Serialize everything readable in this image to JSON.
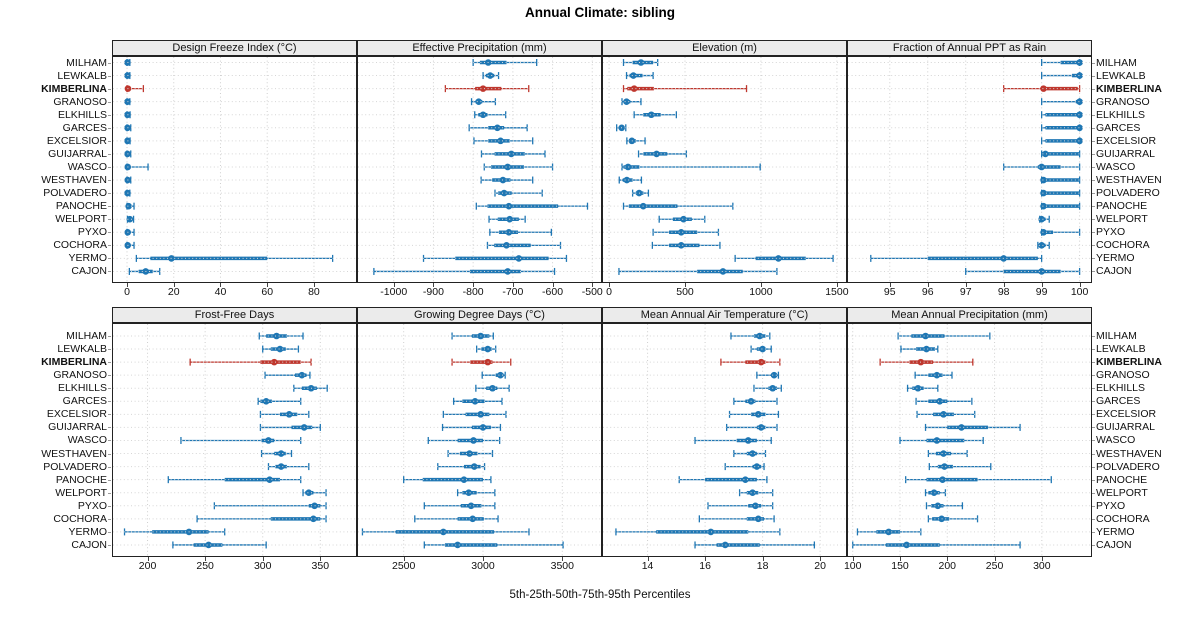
{
  "title": "Annual Climate: sibling",
  "caption": "5th-25th-50th-75th-95th Percentiles",
  "colors": {
    "series_blue": "#1f77b4",
    "highlight_red": "#bf372e",
    "grid": "#cfcfcf",
    "strip_bg": "#ebebeb",
    "panel_border": "#222222"
  },
  "highlight_site": "KIMBERLINA",
  "sites": [
    "MILHAM",
    "LEWKALB",
    "KIMBERLINA",
    "GRANOSO",
    "ELKHILLS",
    "GARCES",
    "EXCELSIOR",
    "GUIJARRAL",
    "WASCO",
    "WESTHAVEN",
    "POLVADERO",
    "PANOCHE",
    "WELPORT",
    "PYXO",
    "COCHORA",
    "YERMO",
    "CAJON"
  ],
  "chart_data": {
    "type": "dotplot-percentile-intervals",
    "percentiles": [
      5,
      25,
      50,
      75,
      95
    ],
    "grid": "2 rows x 4 columns of panels, shared site rows, dotted gridlines",
    "legend_note": "thin line = 5th-95th, thick line = 25th-75th, dot = median; KIMBERLINA highlighted red",
    "panels": [
      {
        "id": "design-freeze-index",
        "label": "Design Freeze Index (°C)",
        "xlim": [
          -6,
          98
        ],
        "ticks": [
          0,
          20,
          40,
          60,
          80
        ],
        "values": [
          [
            0,
            0,
            0.2,
            0.5,
            1.2
          ],
          [
            0,
            0,
            0.2,
            0.5,
            1.2
          ],
          [
            0,
            0.1,
            0.4,
            1,
            7
          ],
          [
            0,
            0,
            0.2,
            0.5,
            1.2
          ],
          [
            0,
            0,
            0.2,
            0.6,
            1.3
          ],
          [
            0,
            0,
            0.2,
            0.6,
            1.6
          ],
          [
            0,
            0,
            0.2,
            0.6,
            1.3
          ],
          [
            0,
            0,
            0.2,
            0.6,
            1.6
          ],
          [
            0,
            0.1,
            0.3,
            0.7,
            9
          ],
          [
            0,
            0.1,
            0.3,
            0.7,
            1.6
          ],
          [
            0,
            0,
            0.2,
            0.5,
            1.2
          ],
          [
            0,
            0.3,
            0.7,
            1.2,
            3
          ],
          [
            0.2,
            0.7,
            1.2,
            2,
            2.8
          ],
          [
            0,
            0.1,
            0.3,
            0.7,
            3
          ],
          [
            0,
            0.1,
            0.3,
            0.7,
            3
          ],
          [
            4,
            10,
            19,
            60,
            88
          ],
          [
            1,
            5,
            8,
            11,
            14
          ]
        ]
      },
      {
        "id": "effective-precipitation",
        "label": "Effective Precipitation (mm)",
        "xlim": [
          -1090,
          -478
        ],
        "ticks": [
          -1000,
          -900,
          -800,
          -700,
          -600,
          -500
        ],
        "values": [
          [
            -800,
            -783,
            -762,
            -716,
            -640
          ],
          [
            -775,
            -768,
            -757,
            -747,
            -736
          ],
          [
            -870,
            -795,
            -775,
            -729,
            -660
          ],
          [
            -804,
            -794,
            -786,
            -777,
            -744
          ],
          [
            -796,
            -787,
            -775,
            -764,
            -718
          ],
          [
            -810,
            -762,
            -739,
            -722,
            -664
          ],
          [
            -798,
            -762,
            -731,
            -708,
            -650
          ],
          [
            -779,
            -746,
            -704,
            -670,
            -619
          ],
          [
            -772,
            -755,
            -713,
            -672,
            -600
          ],
          [
            -780,
            -752,
            -725,
            -706,
            -650
          ],
          [
            -745,
            -737,
            -722,
            -703,
            -626
          ],
          [
            -792,
            -764,
            -710,
            -586,
            -512
          ],
          [
            -760,
            -738,
            -708,
            -685,
            -669
          ],
          [
            -758,
            -735,
            -710,
            -687,
            -603
          ],
          [
            -764,
            -747,
            -716,
            -655,
            -580
          ],
          [
            -925,
            -845,
            -685,
            -610,
            -565
          ],
          [
            -1050,
            -808,
            -713,
            -680,
            -595
          ]
        ]
      },
      {
        "id": "elevation",
        "label": "Elevation (m)",
        "xlim": [
          -40,
          1560
        ],
        "ticks": [
          0,
          500,
          1000,
          1500
        ],
        "values": [
          [
            95,
            155,
            210,
            290,
            320
          ],
          [
            115,
            135,
            160,
            220,
            290
          ],
          [
            95,
            120,
            165,
            295,
            905
          ],
          [
            85,
            95,
            115,
            140,
            210
          ],
          [
            165,
            225,
            278,
            340,
            443
          ],
          [
            50,
            65,
            83,
            100,
            110
          ],
          [
            117,
            132,
            150,
            176,
            237
          ],
          [
            194,
            226,
            313,
            383,
            509
          ],
          [
            85,
            95,
            125,
            200,
            995
          ],
          [
            67,
            90,
            117,
            155,
            213
          ],
          [
            155,
            176,
            198,
            226,
            259
          ],
          [
            95,
            130,
            225,
            450,
            815
          ],
          [
            330,
            420,
            490,
            545,
            630
          ],
          [
            290,
            395,
            475,
            580,
            720
          ],
          [
            285,
            395,
            475,
            595,
            730
          ],
          [
            830,
            965,
            1115,
            1295,
            1475
          ],
          [
            65,
            580,
            750,
            880,
            1105
          ]
        ]
      },
      {
        "id": "fraction-ppt-rain",
        "label": "Fraction of Annual PPT as Rain",
        "xlim": [
          93.9,
          100.3
        ],
        "ticks": [
          95,
          96,
          97,
          98,
          99,
          100
        ],
        "values": [
          [
            99,
            99.5,
            100,
            100,
            100
          ],
          [
            99,
            99.8,
            100,
            100,
            100
          ],
          [
            98,
            99,
            99.05,
            99.95,
            100
          ],
          [
            99,
            99.9,
            100,
            100,
            100
          ],
          [
            99,
            99.1,
            100,
            100,
            100
          ],
          [
            99,
            99.1,
            100,
            100,
            100
          ],
          [
            99,
            99.1,
            100,
            100,
            100
          ],
          [
            99,
            99,
            99.1,
            100,
            100
          ],
          [
            98,
            98.9,
            99,
            99.5,
            100
          ],
          [
            99,
            99,
            99.05,
            100,
            100
          ],
          [
            99,
            99,
            99.05,
            100,
            100
          ],
          [
            99,
            99,
            99.05,
            100,
            100
          ],
          [
            98.95,
            99,
            99,
            99.1,
            99.2
          ],
          [
            99,
            99,
            99.05,
            99.3,
            100
          ],
          [
            98.9,
            99,
            99,
            99.1,
            99.2
          ],
          [
            94.5,
            96,
            98,
            98.9,
            99
          ],
          [
            97,
            98,
            99,
            99.5,
            100
          ]
        ]
      },
      {
        "id": "frost-free-days",
        "label": "Frost-Free Days",
        "xlim": [
          170,
          381
        ],
        "ticks": [
          200,
          250,
          300,
          350
        ],
        "values": [
          [
            297,
            303,
            312,
            321,
            335
          ],
          [
            300,
            307,
            315,
            320,
            331
          ],
          [
            237,
            298,
            310,
            333,
            342
          ],
          [
            302,
            328,
            334,
            338,
            341
          ],
          [
            327,
            334,
            342,
            347,
            356
          ],
          [
            296,
            298,
            303,
            308,
            333
          ],
          [
            298,
            315,
            323,
            330,
            340
          ],
          [
            298,
            325,
            336,
            343,
            350
          ],
          [
            229,
            299,
            305,
            310,
            333
          ],
          [
            299,
            310,
            316,
            320,
            325
          ],
          [
            305,
            311,
            316,
            321,
            340
          ],
          [
            218,
            267,
            306,
            315,
            333
          ],
          [
            335,
            337,
            340,
            344,
            355
          ],
          [
            258,
            340,
            345,
            350,
            355
          ],
          [
            243,
            307,
            344,
            350,
            355
          ],
          [
            180,
            204,
            236,
            253,
            267
          ],
          [
            222,
            240,
            253,
            265,
            303
          ]
        ]
      },
      {
        "id": "growing-degree-days",
        "label": "Growing Degree Days (°C)",
        "xlim": [
          2212,
          3744
        ],
        "ticks": [
          2500,
          3000,
          3500
        ],
        "values": [
          [
            2805,
            2930,
            2985,
            3040,
            3065
          ],
          [
            2960,
            2990,
            3030,
            3055,
            3080
          ],
          [
            2805,
            2920,
            3030,
            3060,
            3175
          ],
          [
            2995,
            3080,
            3110,
            3130,
            3140
          ],
          [
            2955,
            3020,
            3060,
            3090,
            3165
          ],
          [
            2815,
            2870,
            2950,
            3010,
            3120
          ],
          [
            2750,
            2890,
            2985,
            3040,
            3145
          ],
          [
            2745,
            2930,
            3000,
            3050,
            3110
          ],
          [
            2655,
            2840,
            2940,
            3000,
            3105
          ],
          [
            2780,
            2855,
            2915,
            2965,
            3060
          ],
          [
            2715,
            2880,
            2945,
            2985,
            3010
          ],
          [
            2500,
            2620,
            2880,
            3000,
            3050
          ],
          [
            2840,
            2870,
            2910,
            2960,
            3075
          ],
          [
            2630,
            2860,
            2925,
            2990,
            3075
          ],
          [
            2570,
            2840,
            2935,
            3005,
            3095
          ],
          [
            2240,
            2450,
            2750,
            3070,
            3290
          ],
          [
            2630,
            2760,
            2840,
            3090,
            3505
          ]
        ]
      },
      {
        "id": "mean-annual-air-temperature",
        "label": "Mean Annual Air Temperature (°C)",
        "xlim": [
          12.45,
          20.9
        ],
        "ticks": [
          14,
          16,
          18,
          20
        ],
        "values": [
          [
            16.9,
            17.7,
            17.9,
            18.1,
            18.25
          ],
          [
            17.6,
            17.8,
            18,
            18.1,
            18.3
          ],
          [
            16.55,
            17.4,
            17.95,
            18.1,
            18.6
          ],
          [
            17.8,
            18.3,
            18.4,
            18.5,
            18.55
          ],
          [
            17.7,
            18.2,
            18.35,
            18.5,
            18.65
          ],
          [
            17,
            17.4,
            17.6,
            17.75,
            18.5
          ],
          [
            16.85,
            17.6,
            17.85,
            18.1,
            18.55
          ],
          [
            16.75,
            17.8,
            17.95,
            18.1,
            18.5
          ],
          [
            15.65,
            17.1,
            17.5,
            17.8,
            18.3
          ],
          [
            17,
            17.45,
            17.65,
            17.8,
            18.1
          ],
          [
            16.7,
            17.65,
            17.8,
            17.95,
            18.05
          ],
          [
            15.1,
            16,
            17.4,
            17.8,
            18.15
          ],
          [
            17.2,
            17.45,
            17.65,
            17.85,
            18.35
          ],
          [
            16.1,
            17.5,
            17.75,
            17.95,
            18.35
          ],
          [
            15.8,
            17.45,
            17.85,
            18.05,
            18.4
          ],
          [
            12.9,
            14.3,
            16.2,
            17.5,
            18.6
          ],
          [
            15.65,
            16.4,
            16.7,
            17.9,
            19.8
          ]
        ]
      },
      {
        "id": "mean-annual-precipitation",
        "label": "Mean Annual Precipitation (mm)",
        "xlim": [
          95,
          352
        ],
        "ticks": [
          100,
          150,
          200,
          250,
          300
        ],
        "values": [
          [
            148,
            162,
            177,
            197,
            245
          ],
          [
            151,
            167,
            178,
            187,
            190
          ],
          [
            129,
            160,
            172,
            185,
            227
          ],
          [
            166,
            180,
            189,
            195,
            205
          ],
          [
            158,
            163,
            169,
            175,
            190
          ],
          [
            167,
            180,
            192,
            200,
            226
          ],
          [
            168,
            185,
            196,
            207,
            229
          ],
          [
            177,
            200,
            215,
            243,
            277
          ],
          [
            150,
            178,
            189,
            218,
            238
          ],
          [
            180,
            188,
            196,
            204,
            221
          ],
          [
            181,
            190,
            197,
            206,
            246
          ],
          [
            156,
            178,
            195,
            232,
            310
          ],
          [
            177,
            180,
            186,
            192,
            198
          ],
          [
            178,
            183,
            190,
            196,
            216
          ],
          [
            180,
            184,
            194,
            202,
            232
          ],
          [
            105,
            125,
            138,
            150,
            172
          ],
          [
            100,
            135,
            157,
            192,
            277
          ]
        ]
      }
    ]
  }
}
